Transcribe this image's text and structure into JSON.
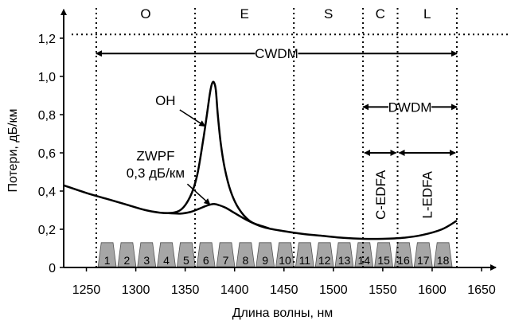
{
  "chart_data": {
    "type": "line",
    "xlabel": "Длина волны, нм",
    "ylabel": "Потери, дБ/км",
    "xlim": [
      1227,
      1650
    ],
    "ylim": [
      0,
      1.3
    ],
    "x_ticks": [
      "1250",
      "1300",
      "1350",
      "1400",
      "1450",
      "1500",
      "1550",
      "1600",
      "1650"
    ],
    "y_ticks": [
      "0",
      "0,2",
      "0,4",
      "0,6",
      "0,8",
      "1,0",
      "1,2"
    ],
    "bands": [
      {
        "label": "O",
        "from": 1260,
        "to": 1360
      },
      {
        "label": "E",
        "from": 1360,
        "to": 1460
      },
      {
        "label": "S",
        "from": 1460,
        "to": 1530
      },
      {
        "label": "C",
        "from": 1530,
        "to": 1565
      },
      {
        "label": "L",
        "from": 1565,
        "to": 1625
      }
    ],
    "series": [
      {
        "name": "OH",
        "x": [
          1227,
          1250,
          1270,
          1290,
          1310,
          1330,
          1345,
          1355,
          1362,
          1368,
          1372,
          1375,
          1377,
          1379,
          1381,
          1383,
          1386,
          1390,
          1396,
          1404,
          1415,
          1430,
          1450,
          1470,
          1490,
          1510,
          1530,
          1550,
          1570,
          1590,
          1610,
          1625
        ],
        "values": [
          0.43,
          0.39,
          0.36,
          0.33,
          0.3,
          0.285,
          0.3,
          0.37,
          0.48,
          0.66,
          0.8,
          0.91,
          0.96,
          0.97,
          0.93,
          0.8,
          0.65,
          0.52,
          0.4,
          0.31,
          0.245,
          0.21,
          0.19,
          0.175,
          0.165,
          0.155,
          0.15,
          0.15,
          0.155,
          0.17,
          0.2,
          0.245
        ]
      },
      {
        "name": "ZWPF 0,3 дБ/км",
        "x": [
          1330,
          1345,
          1355,
          1363,
          1370,
          1376,
          1380,
          1385,
          1392,
          1400,
          1410,
          1420,
          1435
        ],
        "values": [
          0.285,
          0.282,
          0.29,
          0.305,
          0.32,
          0.33,
          0.332,
          0.325,
          0.31,
          0.285,
          0.255,
          0.23,
          0.205
        ]
      }
    ],
    "channels": [
      "1",
      "2",
      "3",
      "4",
      "5",
      "6",
      "7",
      "8",
      "9",
      "10",
      "11",
      "12",
      "13",
      "14",
      "15",
      "16",
      "17",
      "18"
    ],
    "channel_start": 1271,
    "channel_spacing": 20,
    "channel_height": 0.13,
    "ranges": [
      {
        "label": "CWDM",
        "from": 1260,
        "to": 1625,
        "y": 1.12
      },
      {
        "label": "DWDM",
        "from": 1530,
        "to": 1625,
        "y": 0.84
      },
      {
        "label": "C-EDFA",
        "from": 1530,
        "to": 1565,
        "y": 0.6,
        "vertical": true
      },
      {
        "label": "L-EDFA",
        "from": 1565,
        "to": 1625,
        "y": 0.6,
        "vertical": true
      }
    ],
    "annotations": [
      {
        "text": "OH",
        "tx": 1330,
        "ty": 0.85,
        "ax": 1370,
        "ay": 0.74
      },
      {
        "text": "ZWPF",
        "tx": 1320,
        "ty": 0.56,
        "ax": null,
        "ay": null
      },
      {
        "text": "0,3 дБ/км",
        "tx": 1320,
        "ty": 0.47,
        "ax": 1375,
        "ay": 0.33
      }
    ],
    "top_dotted_y": 1.22,
    "grid": false,
    "colors": {
      "curve": "#000000",
      "channel_fill": "#a6a6a6",
      "channel_stroke": "#555555"
    }
  }
}
